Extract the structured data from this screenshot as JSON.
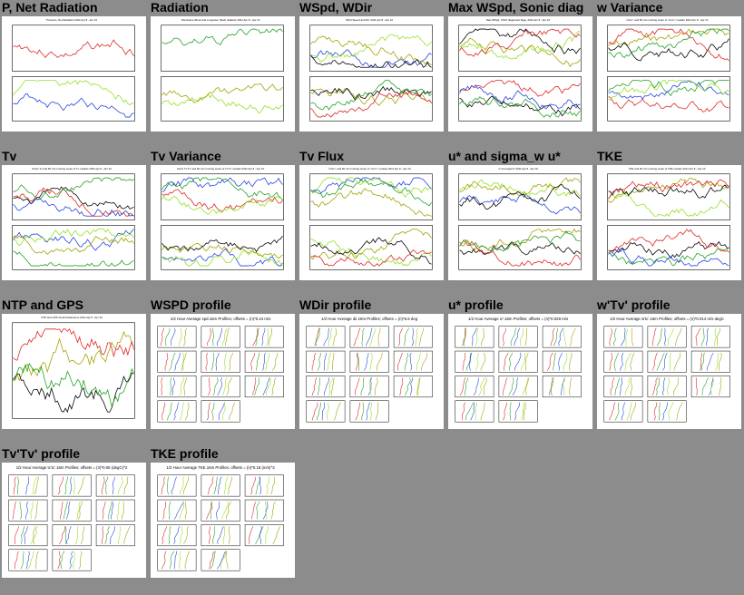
{
  "cells": [
    {
      "title": "P, Net Radiation",
      "kind": "ts2",
      "caption": "Pressure, Net Radiation 2011 Apr 8 - Apr 10"
    },
    {
      "title": "Radiation",
      "kind": "ts2",
      "caption": "Shortwave (Red) and Longwave (Red) radiation 2011 Apr 8 - Apr 10"
    },
    {
      "title": "WSpd, WDir",
      "kind": "ts2",
      "caption": "Wind Speed and Dir, 2011 Apr 8 - Apr 10"
    },
    {
      "title": "Max WSpd, Sonic diag",
      "kind": "ts2",
      "caption": "Max WSpd, CSAT diagnostic flags, 2011 Apr 8 - Apr 10"
    },
    {
      "title": "w Variance",
      "kind": "ts2",
      "caption": "<w'w'> and 60 min running mean of <w'w'> median 2011 Apr 8 - Apr 10"
    },
    {
      "title": "Tv",
      "kind": "ts2",
      "caption": "Sonic Tv and 60 min running mean of Tv median 2011 Apr 8 - Apr 10"
    },
    {
      "title": "Tv Variance",
      "kind": "ts2",
      "caption": "Sonic Tv'Tv' and 60 min running mean of Tv'Tv' median 2011 Apr 8 - Apr 10"
    },
    {
      "title": "Tv Flux",
      "kind": "ts2",
      "caption": "<w'tv'> and 60 min running mean of <w'tv'> median 2011 Apr 8 - Apr 10"
    },
    {
      "title": "u* and sigma_w u*",
      "kind": "ts2",
      "caption": "u* and sigw/u* 2011 Apr 8 - Apr 10"
    },
    {
      "title": "TKE",
      "kind": "ts2",
      "caption": "TKE and 60 min running mean of TKE median 2011 Apr 8 - Apr 10"
    },
    {
      "title": "NTP and GPS",
      "kind": "ts1",
      "caption": "NTP and GPS Clock Parameters 2011 Apr 8 - Apr 10"
    },
    {
      "title": "WSPD profile",
      "kind": "profile",
      "caption": "1/2 Hour Average spd.16m Profiles; offsets = (n)*0.24 m/s"
    },
    {
      "title": "WDir profile",
      "kind": "profile",
      "caption": "1/2 Hour Average dir.16m Profiles; offsets = (n)*6.8 deg"
    },
    {
      "title": "u* profile",
      "kind": "profile",
      "caption": "1/2 Hour Average u*.16m Profiles; offsets = (n)*0.028 m/s"
    },
    {
      "title": "w'Tv' profile",
      "kind": "profile",
      "caption": "1/2 Hour Average w'tc'.16m Profiles; offsets = (n)*0.014 m/s degC"
    },
    {
      "title": "Tv'Tv' profile",
      "kind": "profile",
      "caption": "1/2 Hour Average tc'tc'.16m Profiles; offsets = (n)*0.06 (degC)^2"
    },
    {
      "title": "TKE profile",
      "kind": "profile",
      "caption": "1/2 Hour Average TKE.16m Profiles; offsets = (n)*0.18 (m/s)^2"
    }
  ],
  "colors": {
    "background": "#8c8c8c",
    "red": "#e02020",
    "green": "#20a020",
    "blue": "#2040e0",
    "lime": "#90e020",
    "olive": "#a0a000",
    "black": "#000000"
  }
}
